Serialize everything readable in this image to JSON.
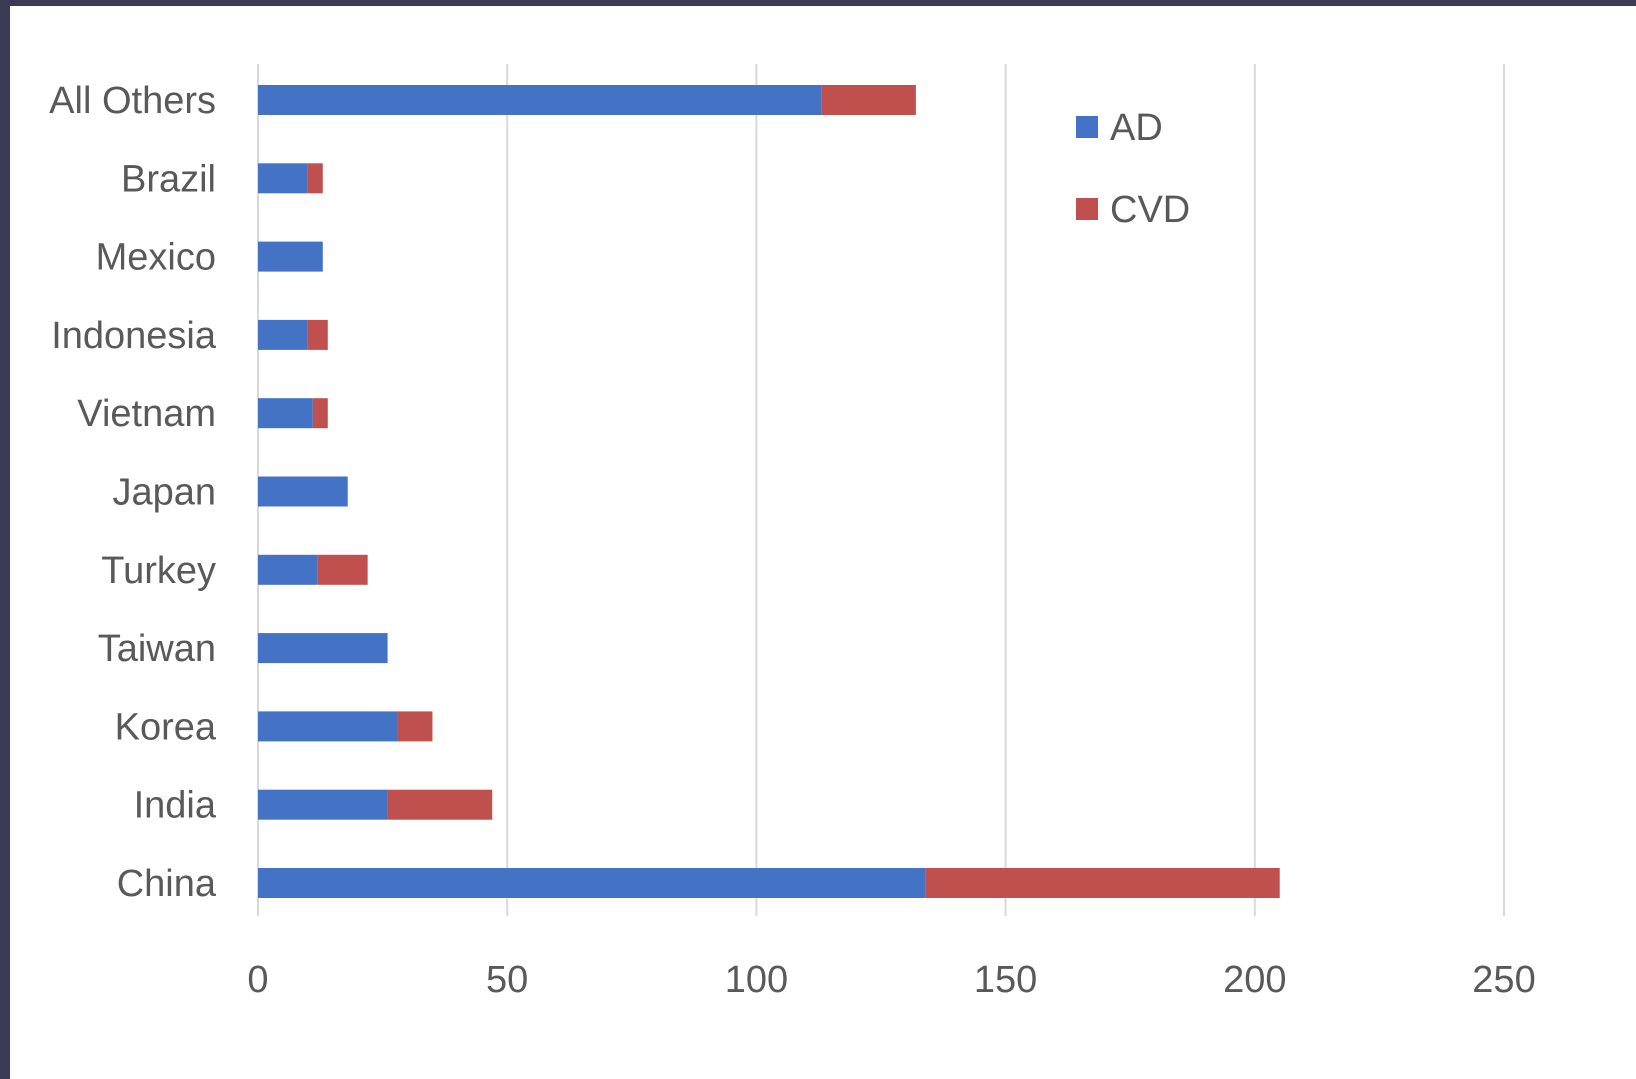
{
  "chart_data": {
    "type": "bar",
    "orientation": "horizontal",
    "stacked": true,
    "categories": [
      "All Others",
      "Brazil",
      "Mexico",
      "Indonesia",
      "Vietnam",
      "Japan",
      "Turkey",
      "Taiwan",
      "Korea",
      "India",
      "China"
    ],
    "series": [
      {
        "name": "AD",
        "color": "#4472C4",
        "values": [
          113,
          10,
          13,
          10,
          11,
          18,
          12,
          26,
          28,
          26,
          134
        ]
      },
      {
        "name": "CVD",
        "color": "#C0504D",
        "values": [
          19,
          3,
          0,
          4,
          3,
          0,
          10,
          0,
          7,
          21,
          71
        ]
      }
    ],
    "xlim": [
      0,
      250
    ],
    "xticks": [
      0,
      50,
      100,
      150,
      200,
      250
    ],
    "grid": "vertical",
    "legend_position": "top-right",
    "title": "",
    "xlabel": "",
    "ylabel": ""
  }
}
